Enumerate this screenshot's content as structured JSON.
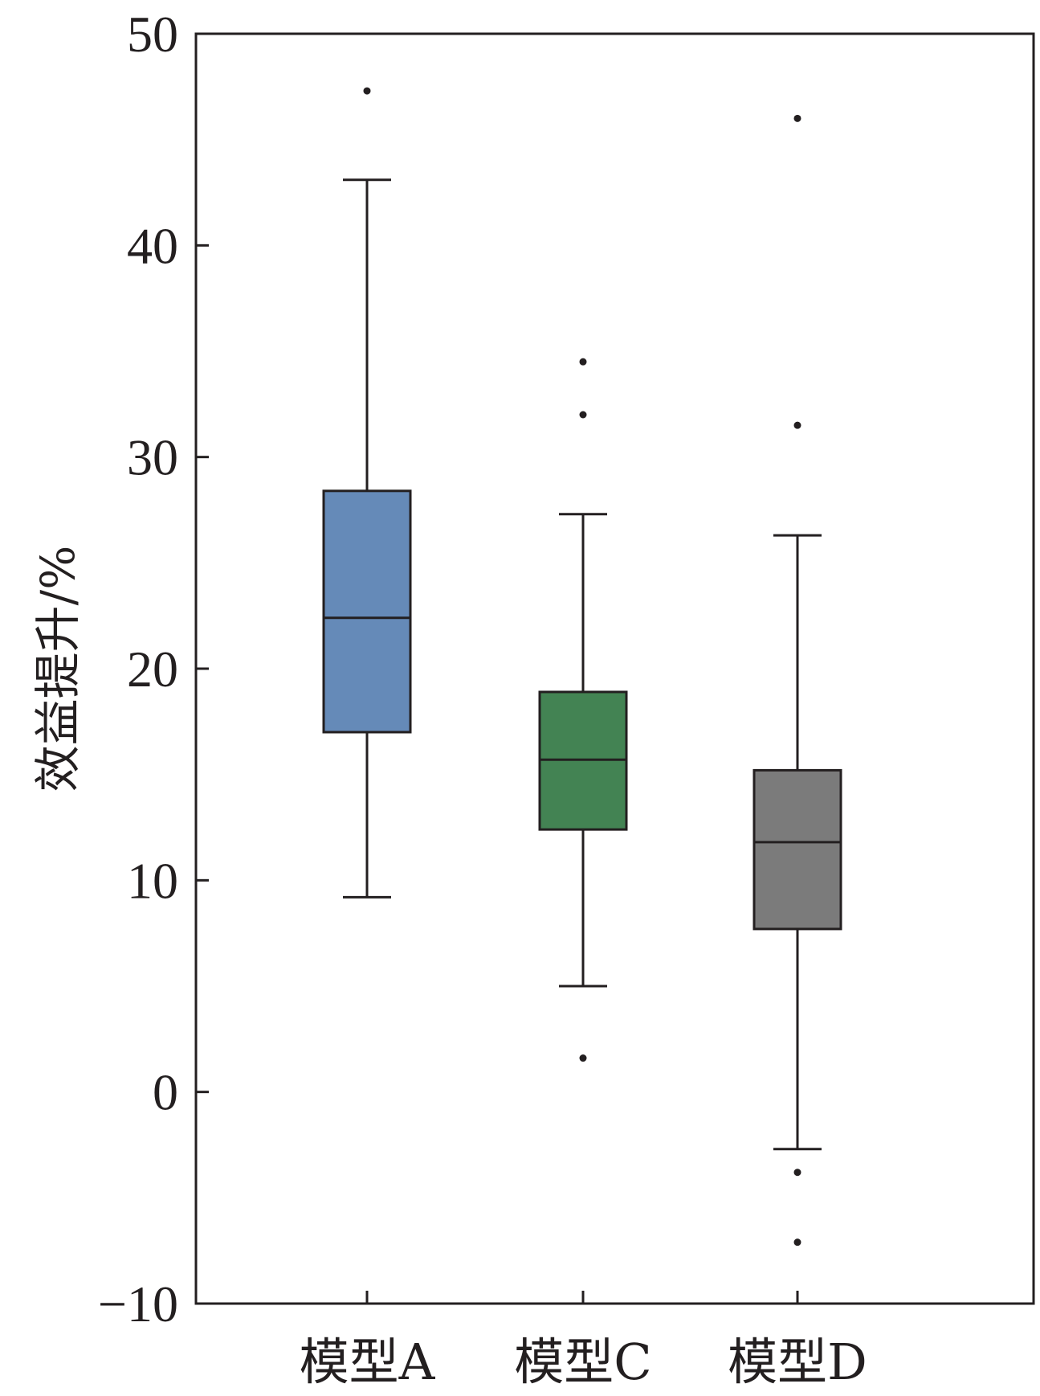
{
  "chart_data": {
    "type": "box",
    "ylabel": "效益提升/%",
    "xlabel": "",
    "ylim": [
      -10,
      50
    ],
    "yticks": [
      -10,
      0,
      10,
      20,
      30,
      40,
      50
    ],
    "ytick_labels": [
      "−10",
      "0",
      "10",
      "20",
      "30",
      "40",
      "50"
    ],
    "grid": false,
    "categories": [
      "模型A",
      "模型C",
      "模型D"
    ],
    "boxes": [
      {
        "name": "模型A",
        "color": "#658ab8",
        "whisker_low": 9.2,
        "q1": 17.0,
        "median": 22.4,
        "q3": 28.4,
        "whisker_high": 43.1,
        "outliers": [
          47.3
        ]
      },
      {
        "name": "模型C",
        "color": "#438353",
        "whisker_low": 5.0,
        "q1": 12.4,
        "median": 15.7,
        "q3": 18.9,
        "whisker_high": 27.3,
        "outliers": [
          34.5,
          32.0,
          1.6
        ]
      },
      {
        "name": "模型D",
        "color": "#7b7b7b",
        "whisker_low": -2.7,
        "q1": 7.7,
        "median": 11.8,
        "q3": 15.2,
        "whisker_high": 26.3,
        "outliers": [
          46.0,
          31.5,
          -3.8,
          -7.1
        ]
      }
    ]
  }
}
